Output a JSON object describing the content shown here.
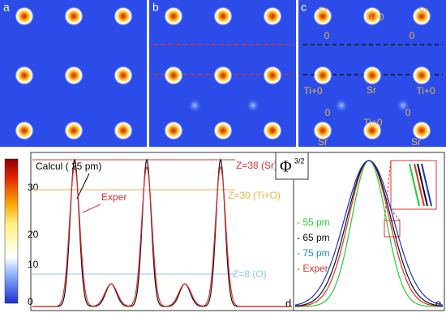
{
  "panels": [
    {
      "label": "a"
    },
    {
      "label": "b"
    },
    {
      "label": "c",
      "sites": [
        "Sr",
        "Ti+0",
        "Sr",
        "0",
        "0",
        "Ti+0",
        "Sr",
        "Ti+0",
        "0",
        "0",
        "Ti+0",
        "Sr",
        "Sr"
      ]
    }
  ],
  "colorbar": {
    "ticks": [
      "30",
      "20",
      "10",
      "0"
    ]
  },
  "plot_d": {
    "label": "d",
    "lines": [
      "Z=38 (Sr)",
      "Z=30 (Ti+O)",
      "Z=8 (O)"
    ],
    "calcul": "Calcul ( 25 pm)",
    "exper": "Exper"
  },
  "phi_box": {
    "base": "Φ",
    "exponent": "3/2"
  },
  "plot_e": {
    "label": "e",
    "legend": [
      "- 55 pm",
      "- 65 pm",
      "- 75 pm",
      "- Exper"
    ]
  }
}
